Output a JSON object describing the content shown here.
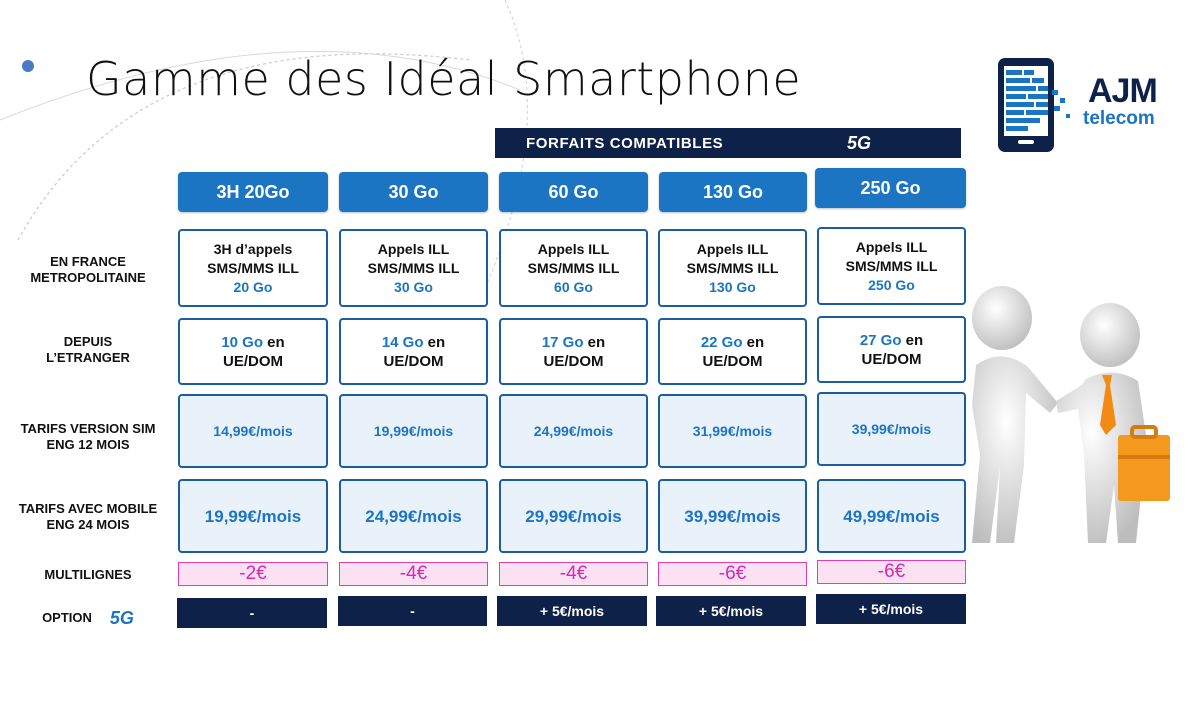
{
  "title": "Gamme des Idéal Smartphone",
  "banner": {
    "label": "FORFAITS COMPATIBLES",
    "badge": "5G"
  },
  "logo": {
    "name": "AJM",
    "sub": "telecom"
  },
  "plans": [
    {
      "header": "3H 20Go",
      "france_l1": "3H d’appels",
      "france_l2": "SMS/MMS ILL",
      "france_data": "20 Go",
      "abroad_data": "10 Go",
      "abroad_suffix": " en",
      "abroad_zone": "UE/DOM",
      "price_sim": "14,99€/mois",
      "price_mobile": "19,99€/mois",
      "multi": "-2€",
      "option": "-"
    },
    {
      "header": "30 Go",
      "france_l1": "Appels ILL",
      "france_l2": "SMS/MMS ILL",
      "france_data": "30 Go",
      "abroad_data": "14 Go",
      "abroad_suffix": " en",
      "abroad_zone": "UE/DOM",
      "price_sim": "19,99€/mois",
      "price_mobile": "24,99€/mois",
      "multi": "-4€",
      "option": "-"
    },
    {
      "header": "60 Go",
      "france_l1": "Appels ILL",
      "france_l2": "SMS/MMS ILL",
      "france_data": "60 Go",
      "abroad_data": "17 Go",
      "abroad_suffix": " en",
      "abroad_zone": "UE/DOM",
      "price_sim": "24,99€/mois",
      "price_mobile": "29,99€/mois",
      "multi": "-4€",
      "option": "+ 5€/mois"
    },
    {
      "header": "130 Go",
      "france_l1": "Appels ILL",
      "france_l2": "SMS/MMS ILL",
      "france_data": "130 Go",
      "abroad_data": "22 Go",
      "abroad_suffix": " en",
      "abroad_zone": "UE/DOM",
      "price_sim": "31,99€/mois",
      "price_mobile": "39,99€/mois",
      "multi": "-6€",
      "option": "+ 5€/mois"
    },
    {
      "header": "250 Go",
      "france_l1": "Appels ILL",
      "france_l2": "SMS/MMS ILL",
      "france_data": "250 Go",
      "abroad_data": "27 Go",
      "abroad_suffix": " en",
      "abroad_zone": "UE/DOM",
      "price_sim": "39,99€/mois",
      "price_mobile": "49,99€/mois",
      "multi": "-6€",
      "option": "+ 5€/mois"
    }
  ],
  "row_labels": {
    "france_1": "EN FRANCE",
    "france_2": "METROPOLITAINE",
    "abroad_1": "DEPUIS",
    "abroad_2": "L’ETRANGER",
    "sim_1": "TARIFS VERSION SIM",
    "sim_2": "ENG 12 MOIS",
    "mobile_1": "TARIFS AVEC MOBILE",
    "mobile_2": "ENG 24 MOIS",
    "multi": "MULTILIGNES",
    "option": "OPTION",
    "option_badge": "5G"
  },
  "colors": {
    "accent": "#1b75c3",
    "navy": "#0d2149",
    "pink": "#d32ab0"
  }
}
